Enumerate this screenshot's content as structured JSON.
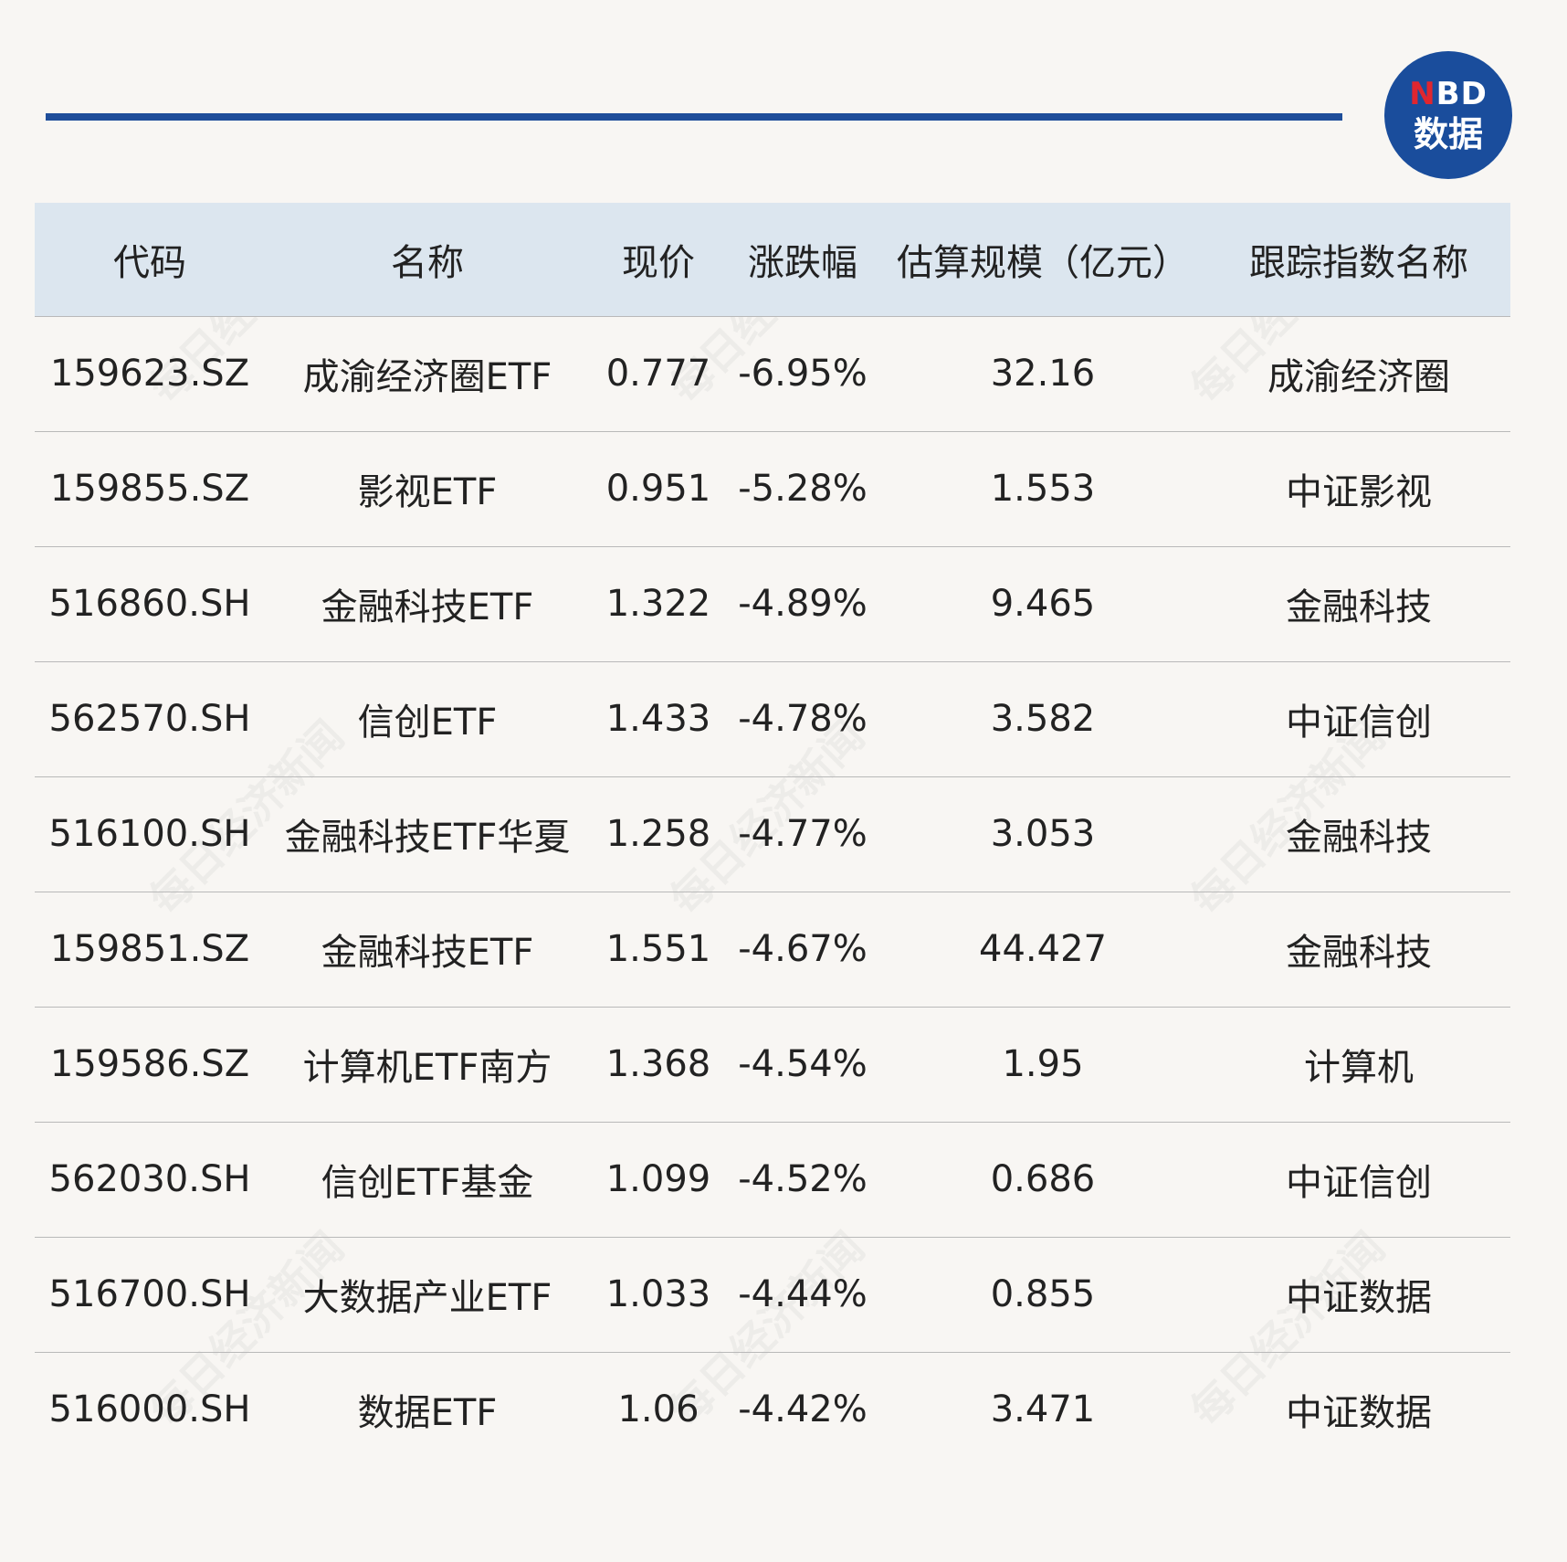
{
  "logo": {
    "line1_n": "N",
    "line1_rest": "BD",
    "line2": "数据"
  },
  "watermark_text": "每日经济新闻",
  "chart_data": {
    "type": "table",
    "columns": [
      "代码",
      "名称",
      "现价",
      "涨跌幅",
      "估算规模（亿元）",
      "跟踪指数名称"
    ],
    "rows": [
      [
        "159623.SZ",
        "成渝经济圈ETF",
        "0.777",
        "-6.95%",
        "32.16",
        "成渝经济圈"
      ],
      [
        "159855.SZ",
        "影视ETF",
        "0.951",
        "-5.28%",
        "1.553",
        "中证影视"
      ],
      [
        "516860.SH",
        "金融科技ETF",
        "1.322",
        "-4.89%",
        "9.465",
        "金融科技"
      ],
      [
        "562570.SH",
        "信创ETF",
        "1.433",
        "-4.78%",
        "3.582",
        "中证信创"
      ],
      [
        "516100.SH",
        "金融科技ETF华夏",
        "1.258",
        "-4.77%",
        "3.053",
        "金融科技"
      ],
      [
        "159851.SZ",
        "金融科技ETF",
        "1.551",
        "-4.67%",
        "44.427",
        "金融科技"
      ],
      [
        "159586.SZ",
        "计算机ETF南方",
        "1.368",
        "-4.54%",
        "1.95",
        "计算机"
      ],
      [
        "562030.SH",
        "信创ETF基金",
        "1.099",
        "-4.52%",
        "0.686",
        "中证信创"
      ],
      [
        "516700.SH",
        "大数据产业ETF",
        "1.033",
        "-4.44%",
        "0.855",
        "中证数据"
      ],
      [
        "516000.SH",
        "数据ETF",
        "1.06",
        "-4.42%",
        "3.471",
        "中证数据"
      ]
    ]
  }
}
